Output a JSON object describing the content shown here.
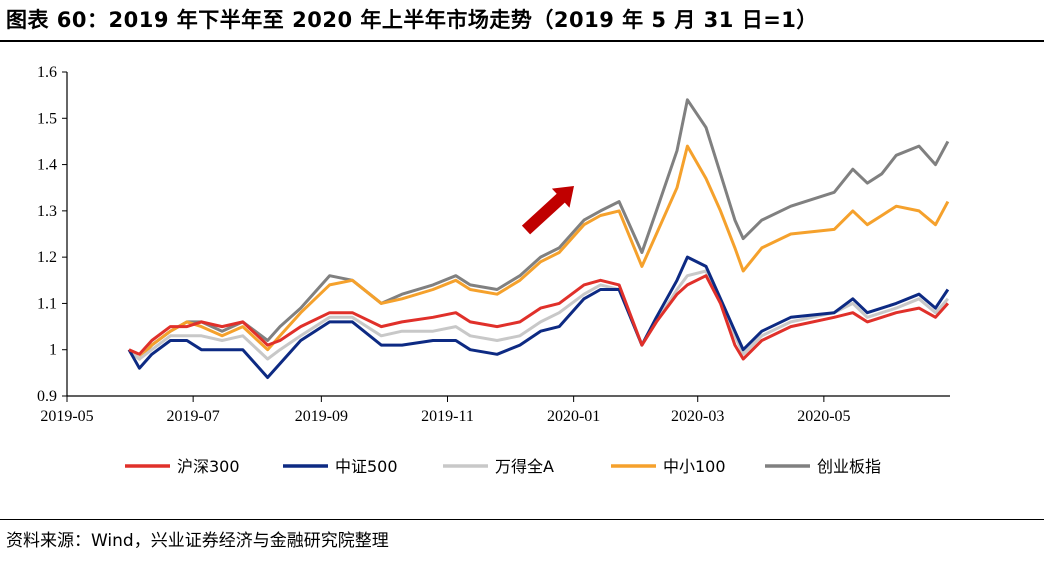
{
  "title": "图表 60：2019 年下半年至 2020 年上半年市场走势（2019 年 5 月 31 日=1）",
  "source": "资料来源：Wind，兴业证券经济与金融研究院整理",
  "arrow_color": "#c00000",
  "chart_data": {
    "type": "line",
    "title": "2019 年下半年至 2020 年上半年市场走势（2019 年 5 月 31 日=1）",
    "xlabel": "",
    "ylabel": "",
    "x_ticks": [
      "2019-05",
      "2019-07",
      "2019-09",
      "2019-11",
      "2020-01",
      "2020-03",
      "2020-05"
    ],
    "y_ticks": [
      "0.9",
      "1",
      "1.1",
      "1.2",
      "1.3",
      "1.4",
      "1.5",
      "1.6"
    ],
    "ylim": [
      0.9,
      1.6
    ],
    "grid": false,
    "legend_position": "bottom",
    "series": [
      {
        "name": "沪深300",
        "color": "#e0302a",
        "points": [
          [
            "2019-05-31",
            1.0
          ],
          [
            "2019-06-05",
            0.99
          ],
          [
            "2019-06-11",
            1.02
          ],
          [
            "2019-06-20",
            1.05
          ],
          [
            "2019-06-28",
            1.05
          ],
          [
            "2019-07-05",
            1.06
          ],
          [
            "2019-07-15",
            1.05
          ],
          [
            "2019-07-25",
            1.06
          ],
          [
            "2019-08-06",
            1.01
          ],
          [
            "2019-08-12",
            1.02
          ],
          [
            "2019-08-22",
            1.05
          ],
          [
            "2019-09-05",
            1.08
          ],
          [
            "2019-09-16",
            1.08
          ],
          [
            "2019-09-30",
            1.05
          ],
          [
            "2019-10-10",
            1.06
          ],
          [
            "2019-10-25",
            1.07
          ],
          [
            "2019-11-05",
            1.08
          ],
          [
            "2019-11-12",
            1.06
          ],
          [
            "2019-11-25",
            1.05
          ],
          [
            "2019-12-06",
            1.06
          ],
          [
            "2019-12-16",
            1.09
          ],
          [
            "2019-12-25",
            1.1
          ],
          [
            "2020-01-06",
            1.14
          ],
          [
            "2020-01-14",
            1.15
          ],
          [
            "2020-01-23",
            1.14
          ],
          [
            "2020-02-03",
            1.01
          ],
          [
            "2020-02-10",
            1.06
          ],
          [
            "2020-02-20",
            1.12
          ],
          [
            "2020-02-25",
            1.14
          ],
          [
            "2020-03-05",
            1.16
          ],
          [
            "2020-03-12",
            1.1
          ],
          [
            "2020-03-19",
            1.01
          ],
          [
            "2020-03-23",
            0.98
          ],
          [
            "2020-04-01",
            1.02
          ],
          [
            "2020-04-15",
            1.05
          ],
          [
            "2020-05-06",
            1.07
          ],
          [
            "2020-05-15",
            1.08
          ],
          [
            "2020-05-22",
            1.06
          ],
          [
            "2020-05-29",
            1.07
          ],
          [
            "2020-06-05",
            1.08
          ],
          [
            "2020-06-16",
            1.09
          ],
          [
            "2020-06-24",
            1.07
          ],
          [
            "2020-06-30",
            1.1
          ]
        ]
      },
      {
        "name": "中证500",
        "color": "#0d2a83",
        "points": [
          [
            "2019-05-31",
            1.0
          ],
          [
            "2019-06-05",
            0.96
          ],
          [
            "2019-06-11",
            0.99
          ],
          [
            "2019-06-20",
            1.02
          ],
          [
            "2019-06-28",
            1.02
          ],
          [
            "2019-07-05",
            1.0
          ],
          [
            "2019-07-15",
            1.0
          ],
          [
            "2019-07-25",
            1.0
          ],
          [
            "2019-08-06",
            0.94
          ],
          [
            "2019-08-12",
            0.97
          ],
          [
            "2019-08-22",
            1.02
          ],
          [
            "2019-09-05",
            1.06
          ],
          [
            "2019-09-16",
            1.06
          ],
          [
            "2019-09-30",
            1.01
          ],
          [
            "2019-10-10",
            1.01
          ],
          [
            "2019-10-25",
            1.02
          ],
          [
            "2019-11-05",
            1.02
          ],
          [
            "2019-11-12",
            1.0
          ],
          [
            "2019-11-25",
            0.99
          ],
          [
            "2019-12-06",
            1.01
          ],
          [
            "2019-12-16",
            1.04
          ],
          [
            "2019-12-25",
            1.05
          ],
          [
            "2020-01-06",
            1.11
          ],
          [
            "2020-01-14",
            1.13
          ],
          [
            "2020-01-23",
            1.13
          ],
          [
            "2020-02-03",
            1.01
          ],
          [
            "2020-02-10",
            1.07
          ],
          [
            "2020-02-20",
            1.15
          ],
          [
            "2020-02-25",
            1.2
          ],
          [
            "2020-03-05",
            1.18
          ],
          [
            "2020-03-12",
            1.11
          ],
          [
            "2020-03-19",
            1.04
          ],
          [
            "2020-03-23",
            1.0
          ],
          [
            "2020-04-01",
            1.04
          ],
          [
            "2020-04-15",
            1.07
          ],
          [
            "2020-05-06",
            1.08
          ],
          [
            "2020-05-15",
            1.11
          ],
          [
            "2020-05-22",
            1.08
          ],
          [
            "2020-05-29",
            1.09
          ],
          [
            "2020-06-05",
            1.1
          ],
          [
            "2020-06-16",
            1.12
          ],
          [
            "2020-06-24",
            1.09
          ],
          [
            "2020-06-30",
            1.13
          ]
        ]
      },
      {
        "name": "万得全A",
        "color": "#c8c8c8",
        "points": [
          [
            "2019-05-31",
            1.0
          ],
          [
            "2019-06-05",
            0.98
          ],
          [
            "2019-06-11",
            1.0
          ],
          [
            "2019-06-20",
            1.03
          ],
          [
            "2019-06-28",
            1.03
          ],
          [
            "2019-07-05",
            1.03
          ],
          [
            "2019-07-15",
            1.02
          ],
          [
            "2019-07-25",
            1.03
          ],
          [
            "2019-08-06",
            0.98
          ],
          [
            "2019-08-12",
            1.0
          ],
          [
            "2019-08-22",
            1.03
          ],
          [
            "2019-09-05",
            1.07
          ],
          [
            "2019-09-16",
            1.07
          ],
          [
            "2019-09-30",
            1.03
          ],
          [
            "2019-10-10",
            1.04
          ],
          [
            "2019-10-25",
            1.04
          ],
          [
            "2019-11-05",
            1.05
          ],
          [
            "2019-11-12",
            1.03
          ],
          [
            "2019-11-25",
            1.02
          ],
          [
            "2019-12-06",
            1.03
          ],
          [
            "2019-12-16",
            1.06
          ],
          [
            "2019-12-25",
            1.08
          ],
          [
            "2020-01-06",
            1.12
          ],
          [
            "2020-01-14",
            1.14
          ],
          [
            "2020-01-23",
            1.13
          ],
          [
            "2020-02-03",
            1.01
          ],
          [
            "2020-02-10",
            1.06
          ],
          [
            "2020-02-20",
            1.13
          ],
          [
            "2020-02-25",
            1.16
          ],
          [
            "2020-03-05",
            1.17
          ],
          [
            "2020-03-12",
            1.1
          ],
          [
            "2020-03-19",
            1.03
          ],
          [
            "2020-03-23",
            0.99
          ],
          [
            "2020-04-01",
            1.03
          ],
          [
            "2020-04-15",
            1.06
          ],
          [
            "2020-05-06",
            1.08
          ],
          [
            "2020-05-15",
            1.1
          ],
          [
            "2020-05-22",
            1.07
          ],
          [
            "2020-05-29",
            1.08
          ],
          [
            "2020-06-05",
            1.09
          ],
          [
            "2020-06-16",
            1.11
          ],
          [
            "2020-06-24",
            1.08
          ],
          [
            "2020-06-30",
            1.11
          ]
        ]
      },
      {
        "name": "中小100",
        "color": "#f5a12c",
        "points": [
          [
            "2019-05-31",
            1.0
          ],
          [
            "2019-06-05",
            0.98
          ],
          [
            "2019-06-11",
            1.01
          ],
          [
            "2019-06-20",
            1.04
          ],
          [
            "2019-06-28",
            1.06
          ],
          [
            "2019-07-05",
            1.05
          ],
          [
            "2019-07-15",
            1.03
          ],
          [
            "2019-07-25",
            1.05
          ],
          [
            "2019-08-06",
            1.0
          ],
          [
            "2019-08-12",
            1.03
          ],
          [
            "2019-08-22",
            1.08
          ],
          [
            "2019-09-05",
            1.14
          ],
          [
            "2019-09-16",
            1.15
          ],
          [
            "2019-09-30",
            1.1
          ],
          [
            "2019-10-10",
            1.11
          ],
          [
            "2019-10-25",
            1.13
          ],
          [
            "2019-11-05",
            1.15
          ],
          [
            "2019-11-12",
            1.13
          ],
          [
            "2019-11-25",
            1.12
          ],
          [
            "2019-12-06",
            1.15
          ],
          [
            "2019-12-16",
            1.19
          ],
          [
            "2019-12-25",
            1.21
          ],
          [
            "2020-01-06",
            1.27
          ],
          [
            "2020-01-14",
            1.29
          ],
          [
            "2020-01-23",
            1.3
          ],
          [
            "2020-02-03",
            1.18
          ],
          [
            "2020-02-10",
            1.25
          ],
          [
            "2020-02-20",
            1.35
          ],
          [
            "2020-02-25",
            1.44
          ],
          [
            "2020-03-05",
            1.37
          ],
          [
            "2020-03-12",
            1.3
          ],
          [
            "2020-03-19",
            1.22
          ],
          [
            "2020-03-23",
            1.17
          ],
          [
            "2020-04-01",
            1.22
          ],
          [
            "2020-04-15",
            1.25
          ],
          [
            "2020-05-06",
            1.26
          ],
          [
            "2020-05-15",
            1.3
          ],
          [
            "2020-05-22",
            1.27
          ],
          [
            "2020-05-29",
            1.29
          ],
          [
            "2020-06-05",
            1.31
          ],
          [
            "2020-06-16",
            1.3
          ],
          [
            "2020-06-24",
            1.27
          ],
          [
            "2020-06-30",
            1.32
          ]
        ]
      },
      {
        "name": "创业板指",
        "color": "#808080",
        "points": [
          [
            "2019-05-31",
            1.0
          ],
          [
            "2019-06-05",
            0.98
          ],
          [
            "2019-06-11",
            1.01
          ],
          [
            "2019-06-20",
            1.04
          ],
          [
            "2019-06-28",
            1.06
          ],
          [
            "2019-07-05",
            1.06
          ],
          [
            "2019-07-15",
            1.04
          ],
          [
            "2019-07-25",
            1.06
          ],
          [
            "2019-08-06",
            1.02
          ],
          [
            "2019-08-12",
            1.05
          ],
          [
            "2019-08-22",
            1.09
          ],
          [
            "2019-09-05",
            1.16
          ],
          [
            "2019-09-16",
            1.15
          ],
          [
            "2019-09-30",
            1.1
          ],
          [
            "2019-10-10",
            1.12
          ],
          [
            "2019-10-25",
            1.14
          ],
          [
            "2019-11-05",
            1.16
          ],
          [
            "2019-11-12",
            1.14
          ],
          [
            "2019-11-25",
            1.13
          ],
          [
            "2019-12-06",
            1.16
          ],
          [
            "2019-12-16",
            1.2
          ],
          [
            "2019-12-25",
            1.22
          ],
          [
            "2020-01-06",
            1.28
          ],
          [
            "2020-01-14",
            1.3
          ],
          [
            "2020-01-23",
            1.32
          ],
          [
            "2020-02-03",
            1.21
          ],
          [
            "2020-02-10",
            1.3
          ],
          [
            "2020-02-20",
            1.43
          ],
          [
            "2020-02-25",
            1.54
          ],
          [
            "2020-03-05",
            1.48
          ],
          [
            "2020-03-12",
            1.38
          ],
          [
            "2020-03-19",
            1.28
          ],
          [
            "2020-03-23",
            1.24
          ],
          [
            "2020-04-01",
            1.28
          ],
          [
            "2020-04-15",
            1.31
          ],
          [
            "2020-05-06",
            1.34
          ],
          [
            "2020-05-15",
            1.39
          ],
          [
            "2020-05-22",
            1.36
          ],
          [
            "2020-05-29",
            1.38
          ],
          [
            "2020-06-05",
            1.42
          ],
          [
            "2020-06-16",
            1.44
          ],
          [
            "2020-06-24",
            1.4
          ],
          [
            "2020-06-30",
            1.45
          ]
        ]
      }
    ]
  }
}
